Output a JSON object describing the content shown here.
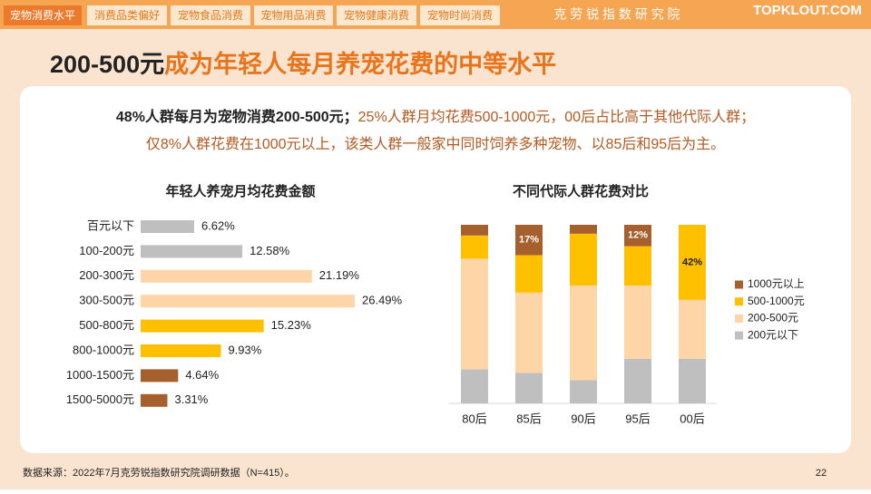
{
  "tabs": [
    "宠物消费水平",
    "消费品类偏好",
    "宠物食品消费",
    "宠物用品消费",
    "宠物健康消费",
    "宠物时尚消费"
  ],
  "brand": "克 劳 锐 指 数 研 究 院",
  "logo": "TOPKLOUT.COM",
  "headline": {
    "lead": "200-500元",
    "rest": "成为年轻人每月养宠花费的中等水平"
  },
  "summary": {
    "line1_bold": "48%人群每月为宠物消费200-500元；",
    "line1_rest": "25%人群月均花费500-1000元，00后占比高于其他代际人群；",
    "line2": "仅8%人群花费在1000元以上，该类人群一般家中同时饲养多种宠物、以85后和95后为主。"
  },
  "chart_data": [
    {
      "type": "hbar",
      "title": "年轻人养宠月均花费金额",
      "categories": [
        "百元以下",
        "100-200元",
        "200-300元",
        "300-500元",
        "500-800元",
        "800-1000元",
        "1000-1500元",
        "1500-5000元"
      ],
      "values": [
        6.62,
        12.58,
        21.19,
        26.49,
        15.23,
        9.93,
        4.64,
        3.31
      ],
      "value_labels": [
        "6.62%",
        "12.58%",
        "21.19%",
        "26.49%",
        "15.23%",
        "9.93%",
        "4.64%",
        "3.31%"
      ],
      "colors": [
        "#bfbfbf",
        "#bfbfbf",
        "#fdd5a6",
        "#fdd5a6",
        "#ffc000",
        "#ffc000",
        "#a5602e",
        "#a5602e"
      ]
    },
    {
      "type": "stacked_bar",
      "title": "不同代际人群花费对比",
      "categories": [
        "80后",
        "85后",
        "90后",
        "95后",
        "00后"
      ],
      "legend": "right",
      "series": [
        {
          "name": "1000元以上",
          "color": "#a5602e",
          "values": [
            6,
            17,
            5,
            12,
            0
          ],
          "value_labels": [
            null,
            "17%",
            null,
            "12%",
            null
          ]
        },
        {
          "name": "500-1000元",
          "color": "#ffc000",
          "values": [
            13,
            21,
            29,
            22,
            42
          ],
          "value_labels": [
            null,
            null,
            null,
            null,
            "42%"
          ]
        },
        {
          "name": "200-500元",
          "color": "#fdd5a6",
          "values": [
            62,
            45,
            53,
            41,
            33
          ]
        },
        {
          "name": "200元以下",
          "color": "#bfbfbf",
          "values": [
            19,
            17,
            13,
            25,
            25
          ]
        }
      ]
    }
  ],
  "source": "数据来源：2022年7月克劳锐指数研究院调研数据（N=415）。",
  "page_number": "22"
}
